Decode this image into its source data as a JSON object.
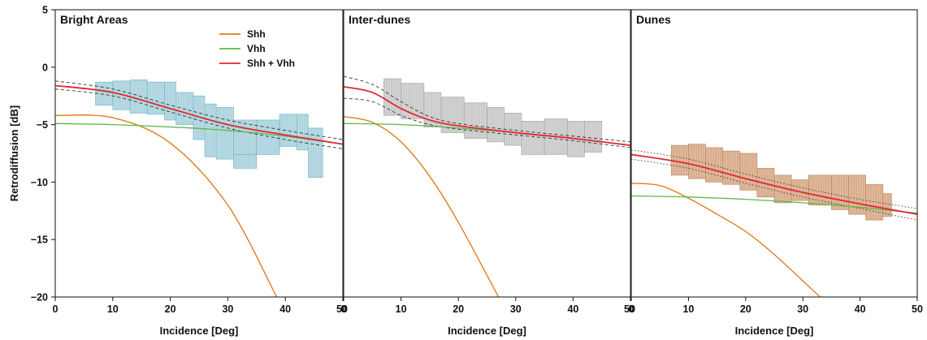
{
  "chart_data": {
    "type": "line",
    "ylabel": "Retrodiffusion [dB]",
    "ylim": [
      -20,
      5
    ],
    "yticks": [
      5,
      0,
      -5,
      -10,
      -15,
      -20
    ],
    "xlim": [
      0,
      50
    ],
    "xticks": [
      0,
      10,
      20,
      30,
      40,
      50
    ],
    "legend_position": "top-center of first panel",
    "legend": [
      {
        "name": "Shh",
        "color": "#e07d1f"
      },
      {
        "name": "Vhh",
        "color": "#5db84a"
      },
      {
        "name": "Shh + Vhh",
        "color": "#e0282e"
      }
    ],
    "colors": {
      "Shh": "#e07d1f",
      "Vhh": "#5db84a",
      "Sum": "#e0282e",
      "band": "#333333"
    },
    "panels": [
      {
        "title": "Bright Areas",
        "xlabel": "Incidence [Deg]",
        "scatter_color": "#a9d2dd",
        "scatter_outline": "#74b7c8",
        "scatter_blocks": [
          {
            "x": [
              7,
              10
            ],
            "y": [
              -1.3,
              -3.3
            ]
          },
          {
            "x": [
              10,
              13
            ],
            "y": [
              -1.2,
              -3.7
            ]
          },
          {
            "x": [
              13,
              16
            ],
            "y": [
              -1.1,
              -4.0
            ]
          },
          {
            "x": [
              16,
              19
            ],
            "y": [
              -1.3,
              -4.1
            ]
          },
          {
            "x": [
              19,
              21
            ],
            "y": [
              -1.3,
              -4.6
            ]
          },
          {
            "x": [
              21,
              24
            ],
            "y": [
              -2.2,
              -5.0
            ]
          },
          {
            "x": [
              24,
              26
            ],
            "y": [
              -2.5,
              -6.3
            ]
          },
          {
            "x": [
              26,
              28
            ],
            "y": [
              -3.2,
              -7.8
            ]
          },
          {
            "x": [
              28,
              31
            ],
            "y": [
              -3.5,
              -8.0
            ]
          },
          {
            "x": [
              31,
              35
            ],
            "y": [
              -4.6,
              -7.6
            ]
          },
          {
            "x": [
              35,
              39
            ],
            "y": [
              -4.6,
              -7.6
            ]
          },
          {
            "x": [
              39,
              42
            ],
            "y": [
              -4.1,
              -6.9
            ]
          },
          {
            "x": [
              42,
              44
            ],
            "y": [
              -4.1,
              -7.2
            ]
          },
          {
            "x": [
              44,
              46.5
            ],
            "y": [
              -5.3,
              -9.6
            ]
          },
          {
            "x": [
              31,
              35
            ],
            "y": [
              -7.6,
              -8.8
            ]
          }
        ],
        "shh": {
          "x": [
            0,
            10,
            20,
            30,
            38.5
          ],
          "y": [
            -4.2,
            -4.4,
            -6.6,
            -12.0,
            -20.0
          ]
        },
        "vhh": {
          "x": [
            0,
            10,
            20,
            30,
            40,
            50
          ],
          "y": [
            -4.9,
            -5.0,
            -5.2,
            -5.5,
            -6.0,
            -6.7
          ]
        },
        "sum": {
          "x": [
            0,
            10,
            20,
            30,
            40,
            50
          ],
          "y": [
            -1.6,
            -2.2,
            -3.6,
            -5.0,
            -5.9,
            -6.7
          ]
        },
        "band_upper": {
          "x": [
            0,
            10,
            20,
            30,
            40,
            50
          ],
          "y": [
            -1.2,
            -1.9,
            -3.3,
            -4.6,
            -5.5,
            -6.3
          ]
        },
        "band_lower": {
          "x": [
            0,
            10,
            20,
            30,
            40,
            50
          ],
          "y": [
            -1.9,
            -2.5,
            -3.9,
            -5.3,
            -6.3,
            -7.1
          ]
        }
      },
      {
        "title": "Inter-dunes",
        "xlabel": "Incidence [Deg]",
        "scatter_color": "#c9c9c9",
        "scatter_outline": "#a9a9a9",
        "scatter_blocks": [
          {
            "x": [
              7,
              10
            ],
            "y": [
              -1.0,
              -4.2
            ]
          },
          {
            "x": [
              10,
              14
            ],
            "y": [
              -1.4,
              -4.5
            ]
          },
          {
            "x": [
              14,
              17
            ],
            "y": [
              -2.2,
              -5.2
            ]
          },
          {
            "x": [
              17,
              21
            ],
            "y": [
              -2.6,
              -5.7
            ]
          },
          {
            "x": [
              21,
              25
            ],
            "y": [
              -3.1,
              -6.2
            ]
          },
          {
            "x": [
              25,
              28
            ],
            "y": [
              -3.5,
              -6.5
            ]
          },
          {
            "x": [
              28,
              31
            ],
            "y": [
              -4.0,
              -6.8
            ]
          },
          {
            "x": [
              31,
              35
            ],
            "y": [
              -4.7,
              -7.6
            ]
          },
          {
            "x": [
              35,
              39
            ],
            "y": [
              -4.5,
              -7.6
            ]
          },
          {
            "x": [
              39,
              42
            ],
            "y": [
              -4.7,
              -7.8
            ]
          },
          {
            "x": [
              42,
              45
            ],
            "y": [
              -4.7,
              -7.4
            ]
          }
        ],
        "shh": {
          "x": [
            0,
            5,
            10,
            15,
            20,
            27
          ],
          "y": [
            -4.3,
            -4.8,
            -6.5,
            -9.5,
            -13.5,
            -20.0
          ]
        },
        "vhh": {
          "x": [
            0,
            10,
            20,
            30,
            40,
            50
          ],
          "y": [
            -4.9,
            -5.0,
            -5.3,
            -5.7,
            -6.2,
            -6.8
          ]
        },
        "sum": {
          "x": [
            0,
            5,
            10,
            15,
            20,
            30,
            40,
            50
          ],
          "y": [
            -1.7,
            -2.2,
            -3.6,
            -4.6,
            -5.1,
            -5.7,
            -6.2,
            -6.8
          ]
        },
        "band_upper": {
          "x": [
            0,
            5,
            10,
            15,
            20,
            30,
            40,
            50
          ],
          "y": [
            -0.8,
            -1.5,
            -3.0,
            -4.3,
            -4.9,
            -5.5,
            -6.0,
            -6.5
          ]
        },
        "band_lower": {
          "x": [
            0,
            5,
            10,
            15,
            20,
            30,
            40,
            50
          ],
          "y": [
            -2.7,
            -3.0,
            -4.2,
            -5.0,
            -5.4,
            -5.9,
            -6.4,
            -7.0
          ]
        }
      },
      {
        "title": "Dunes",
        "xlabel": "Incidence [Deg]",
        "scatter_color": "#d7a987",
        "scatter_outline": "#c08a64",
        "scatter_blocks": [
          {
            "x": [
              7,
              10
            ],
            "y": [
              -6.8,
              -9.4
            ]
          },
          {
            "x": [
              10,
              13
            ],
            "y": [
              -6.7,
              -9.7
            ]
          },
          {
            "x": [
              13,
              16
            ],
            "y": [
              -7.0,
              -10.0
            ]
          },
          {
            "x": [
              16,
              19
            ],
            "y": [
              -7.3,
              -10.2
            ]
          },
          {
            "x": [
              19,
              22
            ],
            "y": [
              -7.5,
              -10.7
            ]
          },
          {
            "x": [
              22,
              25
            ],
            "y": [
              -8.8,
              -11.3
            ]
          },
          {
            "x": [
              25,
              28
            ],
            "y": [
              -9.4,
              -11.8
            ]
          },
          {
            "x": [
              28,
              31
            ],
            "y": [
              -9.8,
              -11.6
            ]
          },
          {
            "x": [
              31,
              35
            ],
            "y": [
              -9.4,
              -12.0
            ]
          },
          {
            "x": [
              35,
              38
            ],
            "y": [
              -9.4,
              -12.4
            ]
          },
          {
            "x": [
              38,
              41
            ],
            "y": [
              -9.4,
              -12.8
            ]
          },
          {
            "x": [
              41,
              44
            ],
            "y": [
              -10.2,
              -13.3
            ]
          },
          {
            "x": [
              44,
              45.5
            ],
            "y": [
              -11.0,
              -13.0
            ]
          }
        ],
        "shh": {
          "x": [
            0,
            5,
            10,
            15,
            20,
            25,
            33
          ],
          "y": [
            -10.1,
            -10.3,
            -11.4,
            -12.8,
            -14.3,
            -16.3,
            -20.0
          ]
        },
        "vhh": {
          "x": [
            0,
            10,
            20,
            30,
            40,
            50
          ],
          "y": [
            -11.2,
            -11.3,
            -11.5,
            -11.8,
            -12.2,
            -12.7
          ]
        },
        "sum": {
          "x": [
            0,
            10,
            20,
            30,
            40,
            50
          ],
          "y": [
            -7.6,
            -8.4,
            -9.7,
            -10.9,
            -11.9,
            -12.8
          ]
        },
        "band_upper": {
          "x": [
            0,
            10,
            20,
            30,
            40,
            50
          ],
          "y": [
            -7.2,
            -8.0,
            -9.3,
            -10.5,
            -11.5,
            -12.3
          ]
        },
        "band_lower": {
          "x": [
            0,
            10,
            20,
            30,
            40,
            50
          ],
          "y": [
            -8.0,
            -8.8,
            -10.1,
            -11.3,
            -12.3,
            -13.3
          ]
        }
      }
    ]
  }
}
